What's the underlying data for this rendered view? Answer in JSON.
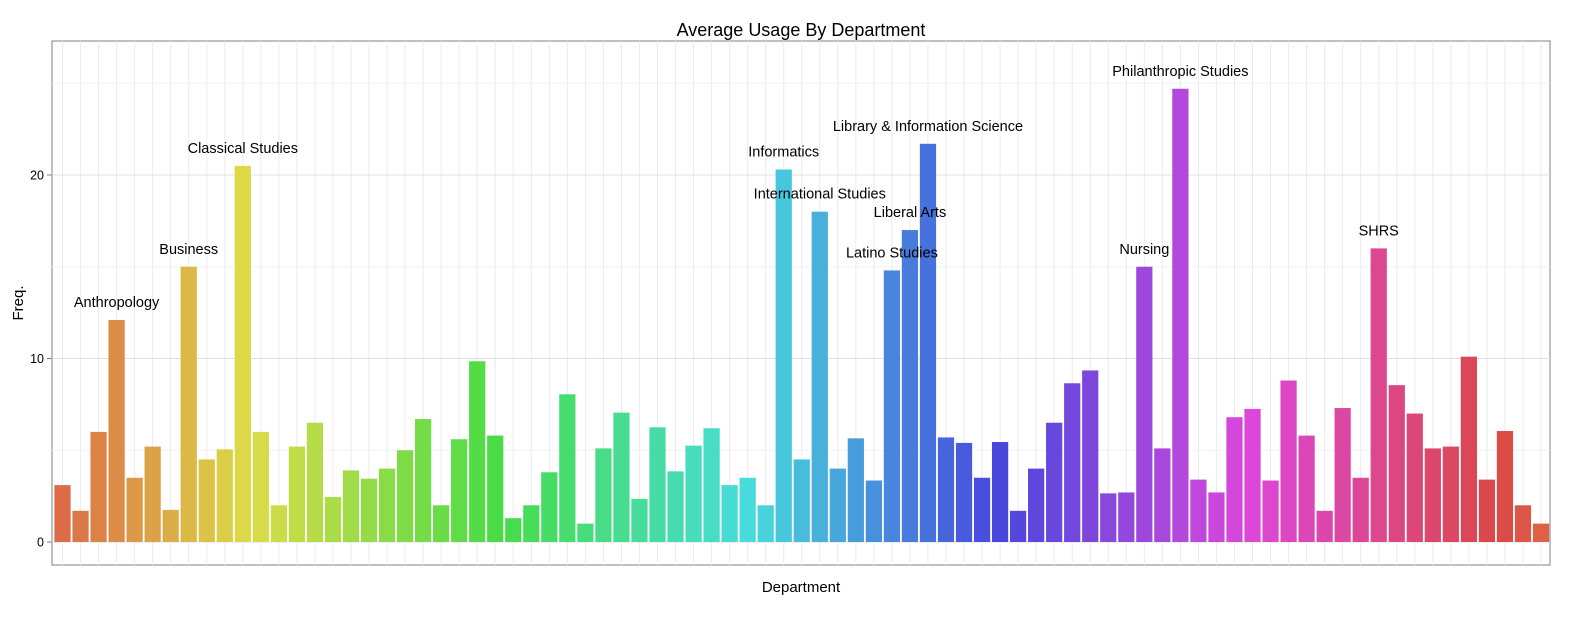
{
  "chart_data": {
    "type": "bar",
    "title": "Average Usage By Department",
    "xlabel": "Department",
    "ylabel": "Freq.",
    "ylim": [
      0,
      25.4
    ],
    "yticks": [
      0,
      10,
      20
    ],
    "grid": true,
    "legend": "none",
    "values": [
      3.1,
      1.7,
      6.0,
      12.1,
      3.5,
      5.2,
      1.75,
      15.0,
      4.5,
      5.05,
      20.5,
      6.0,
      2.0,
      5.2,
      6.5,
      2.45,
      3.9,
      3.45,
      4.0,
      5.0,
      6.7,
      2.0,
      5.6,
      9.85,
      5.8,
      1.3,
      2.0,
      3.8,
      8.05,
      1.0,
      5.1,
      7.05,
      2.35,
      6.25,
      3.85,
      5.25,
      6.2,
      3.1,
      3.5,
      2.0,
      20.3,
      4.5,
      18.0,
      4.0,
      5.65,
      3.35,
      14.8,
      17.0,
      21.7,
      5.7,
      5.4,
      3.5,
      5.45,
      1.7,
      4.0,
      6.5,
      8.65,
      9.35,
      2.65,
      2.7,
      15.0,
      5.1,
      24.7,
      3.4,
      2.7,
      6.8,
      7.25,
      3.35,
      8.8,
      5.8,
      1.7,
      7.3,
      3.5,
      16.0,
      8.55,
      7.0,
      5.1,
      5.2,
      10.1,
      3.4,
      6.05,
      2.0,
      1.0
    ],
    "annotations": [
      {
        "label": "Anthropology",
        "bar": 3
      },
      {
        "label": "Business",
        "bar": 7
      },
      {
        "label": "Classical Studies",
        "bar": 10
      },
      {
        "label": "Informatics",
        "bar": 40
      },
      {
        "label": "International Studies",
        "bar": 42
      },
      {
        "label": "Latino Studies",
        "bar": 46
      },
      {
        "label": "Liberal Arts",
        "bar": 47
      },
      {
        "label": "Library & Information Science",
        "bar": 48
      },
      {
        "label": "Nursing",
        "bar": 60
      },
      {
        "label": "Philanthropic Studies",
        "bar": 62
      },
      {
        "label": "SHRS",
        "bar": 73
      }
    ]
  }
}
